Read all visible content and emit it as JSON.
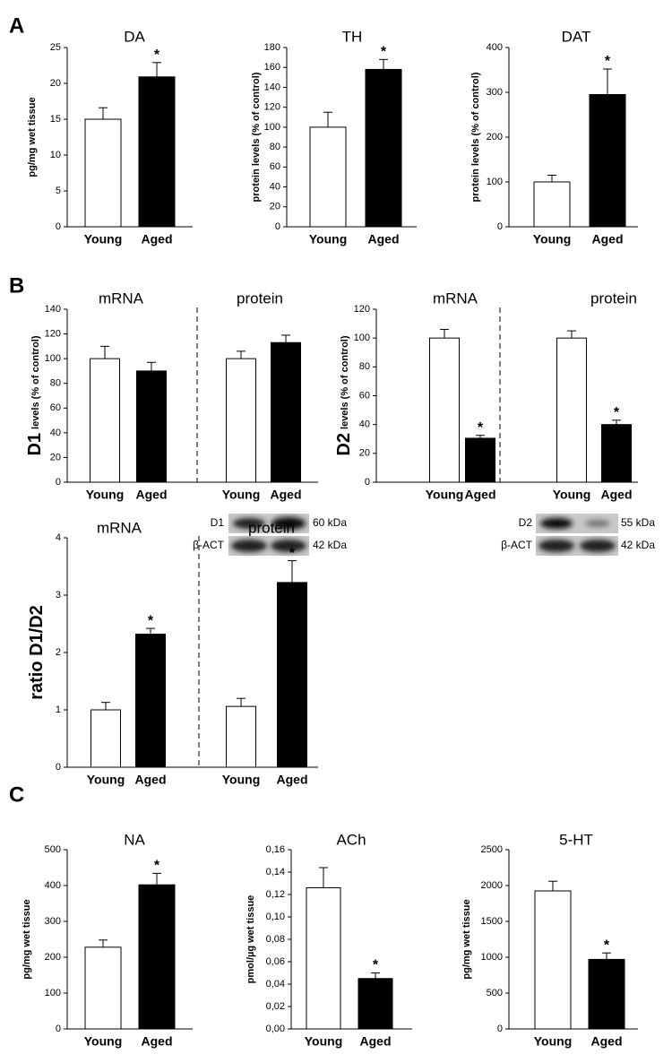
{
  "panels": [
    "A",
    "B",
    "C"
  ],
  "blots": [
    {
      "protein": "D1",
      "protein_size": "60 kDa",
      "control": "β-ACT",
      "control_size": "42 kDa"
    },
    {
      "protein": "D2",
      "protein_size": "55 kDa",
      "control": "β-ACT",
      "control_size": "42 kDa"
    }
  ],
  "chart_data": [
    {
      "type": "bar",
      "title": "DA",
      "ylabel": "pg/mg wet tissue",
      "colors": [
        "#ffffff",
        "#000000"
      ],
      "categories": [
        "Young",
        "Aged"
      ],
      "values": [
        15,
        20.9
      ],
      "errors": [
        1.6,
        2.0
      ],
      "significance": [
        null,
        "*"
      ],
      "ylim": [
        0,
        25
      ],
      "yticks": [
        0,
        5,
        10,
        15,
        20,
        25
      ]
    },
    {
      "type": "bar",
      "title": "TH",
      "ylabel": "protein levels (% of control)",
      "colors": [
        "#ffffff",
        "#000000"
      ],
      "categories": [
        "Young",
        "Aged"
      ],
      "values": [
        100,
        158
      ],
      "errors": [
        15,
        10
      ],
      "significance": [
        null,
        "*"
      ],
      "ylim": [
        0,
        180
      ],
      "yticks": [
        0,
        20,
        40,
        60,
        80,
        100,
        120,
        140,
        160,
        180
      ]
    },
    {
      "type": "bar",
      "title": "DAT",
      "ylabel": "protein levels (% of control)",
      "colors": [
        "#ffffff",
        "#000000"
      ],
      "categories": [
        "Young",
        "Aged"
      ],
      "values": [
        100,
        295
      ],
      "errors": [
        15,
        57
      ],
      "significance": [
        null,
        "*"
      ],
      "ylim": [
        0,
        400
      ],
      "yticks": [
        0,
        100,
        200,
        300,
        400
      ]
    },
    {
      "type": "bar",
      "ylabel_prefix": "D1",
      "ylabel": "levels (% of control)",
      "colors": [
        "#ffffff",
        "#000000"
      ],
      "groups": [
        {
          "name": "mRNA",
          "categories": [
            "Young",
            "Aged"
          ],
          "values": [
            100,
            90
          ],
          "errors": [
            10,
            7
          ],
          "significance": [
            null,
            null
          ]
        },
        {
          "name": "protein",
          "categories": [
            "Young",
            "Aged"
          ],
          "values": [
            100,
            113
          ],
          "errors": [
            6,
            6
          ],
          "significance": [
            null,
            null
          ]
        }
      ],
      "ylim": [
        0,
        140
      ],
      "yticks": [
        0,
        20,
        40,
        60,
        80,
        100,
        120,
        140
      ]
    },
    {
      "type": "bar",
      "ylabel_prefix": "D2",
      "ylabel": "levels (% of control)",
      "colors": [
        "#ffffff",
        "#000000"
      ],
      "groups": [
        {
          "name": "mRNA",
          "categories": [
            "Young",
            "Aged"
          ],
          "values": [
            100,
            30.5
          ],
          "errors": [
            6,
            2
          ],
          "significance": [
            null,
            "*"
          ]
        },
        {
          "name": "protein",
          "categories": [
            "Young",
            "Aged"
          ],
          "values": [
            100,
            40
          ],
          "errors": [
            5,
            3
          ],
          "significance": [
            null,
            "*"
          ]
        }
      ],
      "ylim": [
        0,
        120
      ],
      "yticks": [
        0,
        20,
        40,
        60,
        80,
        100,
        120
      ]
    },
    {
      "type": "bar",
      "ylabel_prefix": "ratio D1/D2",
      "colors": [
        "#ffffff",
        "#000000"
      ],
      "groups": [
        {
          "name": "mRNA",
          "categories": [
            "Young",
            "Aged"
          ],
          "values": [
            1,
            2.32
          ],
          "errors": [
            0.13,
            0.1
          ],
          "significance": [
            null,
            "*"
          ]
        },
        {
          "name": "protein",
          "categories": [
            "Young",
            "Aged"
          ],
          "values": [
            1.06,
            3.22
          ],
          "errors": [
            0.14,
            0.38
          ],
          "significance": [
            null,
            "*"
          ]
        }
      ],
      "ylim": [
        0,
        4
      ],
      "yticks": [
        0,
        1,
        2,
        3,
        4
      ]
    },
    {
      "type": "bar",
      "title": "NA",
      "ylabel": "pg/mg wet tissue",
      "colors": [
        "#ffffff",
        "#000000"
      ],
      "categories": [
        "Young",
        "Aged"
      ],
      "values": [
        228,
        402
      ],
      "errors": [
        20,
        32
      ],
      "significance": [
        null,
        "*"
      ],
      "ylim": [
        0,
        500
      ],
      "yticks": [
        0,
        100,
        200,
        300,
        400,
        500
      ]
    },
    {
      "type": "bar",
      "title": "ACh",
      "ylabel": "pmol/µg wet tissue",
      "colors": [
        "#ffffff",
        "#000000"
      ],
      "categories": [
        "Young",
        "Aged"
      ],
      "values": [
        0.126,
        0.045
      ],
      "errors": [
        0.018,
        0.005
      ],
      "significance": [
        null,
        "*"
      ],
      "ylim": [
        0,
        0.16
      ],
      "yticks": [
        {
          "value": 0,
          "label": "0,00"
        },
        {
          "value": 0.02,
          "label": "0,02"
        },
        {
          "value": 0.04,
          "label": "0,04"
        },
        {
          "value": 0.06,
          "label": "0,06"
        },
        {
          "value": 0.08,
          "label": "0,08"
        },
        {
          "value": 0.1,
          "label": "0,10"
        },
        {
          "value": 0.12,
          "label": "0,12"
        },
        {
          "value": 0.14,
          "label": "0,14"
        },
        {
          "value": 0.16,
          "label": "0,16"
        }
      ]
    },
    {
      "type": "bar",
      "title": "5-HT",
      "ylabel": "pg/mg wet tissue",
      "colors": [
        "#ffffff",
        "#000000"
      ],
      "categories": [
        "Young",
        "Aged"
      ],
      "values": [
        1925,
        970
      ],
      "errors": [
        135,
        90
      ],
      "significance": [
        null,
        "*"
      ],
      "ylim": [
        0,
        2500
      ],
      "yticks": [
        0,
        500,
        1000,
        1500,
        2000,
        2500
      ]
    }
  ]
}
